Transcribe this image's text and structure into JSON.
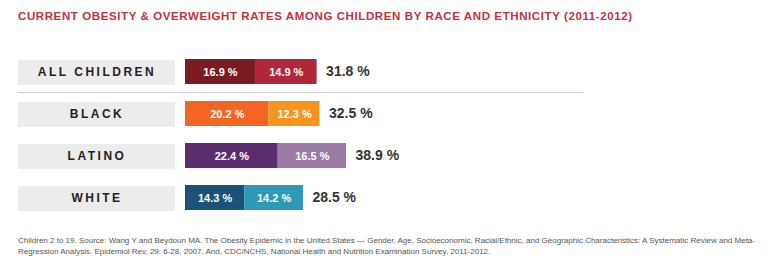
{
  "chart_data": {
    "type": "bar",
    "title": "CURRENT OBESITY & OVERWEIGHT RATES AMONG CHILDREN BY RACE AND ETHNICITY (2011-2012)",
    "caption": "Children 2 to 19. Source: Wang Y and Beydoun MA. The Obesity Epidemic in the United States — Gender, Age, Socioeconomic, Racial/Ethnic, and Geographic Characteristics: A Systematic Review and Meta-Regression Analysis. Epidemiol Rev, 29: 6-28, 2007. And, CDC/NCHS, National Health and Nutrition Examination Survey, 2011-2012.",
    "orientation": "horizontal",
    "stacked": true,
    "data_labels": true,
    "tick_labels": "y",
    "categories": [
      "ALL CHILDREN",
      "BLACK",
      "LATINO",
      "WHITE"
    ],
    "series": [
      {
        "values": [
          16.9,
          20.2,
          22.4,
          14.3
        ],
        "value_labels": [
          "16.9 %",
          "20.2 %",
          "22.4 %",
          "14.3 %"
        ],
        "colors": [
          "#7b1a20",
          "#f26522",
          "#5b2d6e",
          "#1c5277"
        ]
      },
      {
        "values": [
          14.9,
          12.3,
          16.5,
          14.2
        ],
        "value_labels": [
          "14.9 %",
          "12.3 %",
          "16.5 %",
          "14.2 %"
        ],
        "colors": [
          "#b0263a",
          "#f7941d",
          "#9b7aa5",
          "#2e98b6"
        ]
      }
    ],
    "totals": [
      31.8,
      32.5,
      38.9,
      28.5
    ],
    "total_labels": [
      "31.8 %",
      "32.5 %",
      "38.9 %",
      "28.5 %"
    ]
  }
}
